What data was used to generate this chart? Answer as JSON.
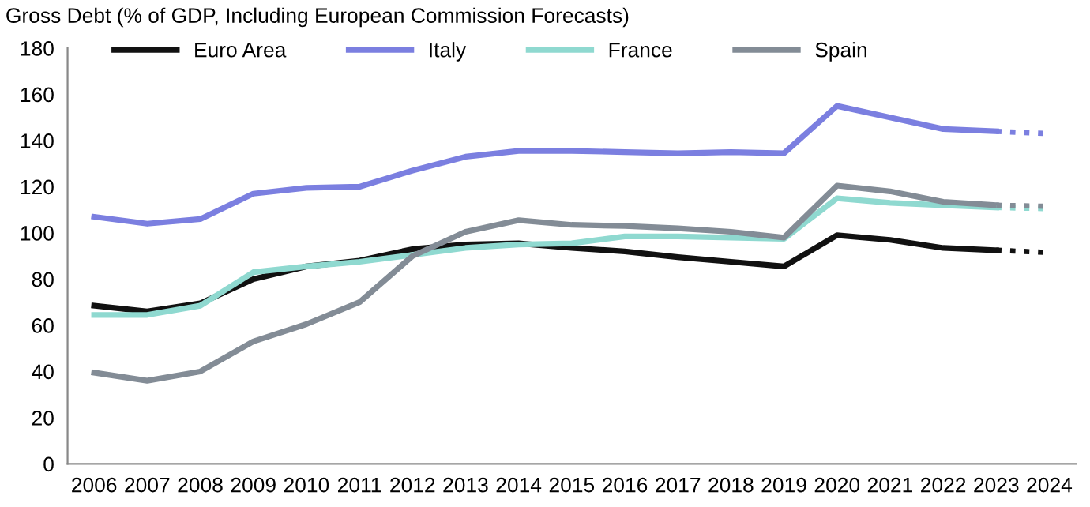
{
  "chart_data": {
    "type": "line",
    "title": "Gross Debt (% of GDP, Including European Commission Forecasts)",
    "categories": [
      "2006",
      "2007",
      "2008",
      "2009",
      "2010",
      "2011",
      "2012",
      "2013",
      "2014",
      "2015",
      "2016",
      "2017",
      "2018",
      "2019",
      "2020",
      "2021",
      "2022",
      "2023",
      "2024"
    ],
    "ylim": [
      0,
      180
    ],
    "yticks": [
      0,
      20,
      40,
      60,
      80,
      100,
      120,
      140,
      160,
      180
    ],
    "grid": false,
    "legend": "top",
    "marker": "none",
    "series": [
      {
        "name": "Euro Area",
        "color": "#111111",
        "line_style": "solid",
        "values": [
          68.5,
          66,
          69.5,
          80,
          85.5,
          88,
          93,
          95,
          95.5,
          93.5,
          92,
          89.5,
          87.5,
          85.5,
          99,
          97,
          93.5,
          92.5,
          null
        ]
      },
      {
        "name": "Italy",
        "color": "#7b7fe0",
        "line_style": "solid",
        "values": [
          107,
          104,
          106,
          117,
          119.5,
          120,
          127,
          133,
          135.5,
          135.5,
          135,
          134.5,
          135,
          134.5,
          155,
          150,
          145,
          144,
          null
        ]
      },
      {
        "name": "France",
        "color": "#8fd9d0",
        "line_style": "solid",
        "values": [
          64.5,
          64.5,
          68.5,
          83,
          85.5,
          87.5,
          90.5,
          93.5,
          95,
          95.5,
          98.5,
          98.5,
          98,
          97.5,
          115,
          113,
          112,
          111,
          null
        ]
      },
      {
        "name": "Spain",
        "color": "#838c96",
        "line_style": "solid",
        "values": [
          39.5,
          36,
          40,
          53,
          60.5,
          70,
          90,
          100.5,
          105.5,
          103.5,
          103,
          102,
          100.5,
          98,
          120.5,
          118,
          113.5,
          112,
          null
        ]
      },
      {
        "color": "#111111",
        "line_style": "dotted",
        "values": [
          null,
          null,
          null,
          null,
          null,
          null,
          null,
          null,
          null,
          null,
          null,
          null,
          null,
          null,
          null,
          null,
          null,
          92.5,
          91.5
        ]
      },
      {
        "color": "#7b7fe0",
        "line_style": "dotted",
        "values": [
          null,
          null,
          null,
          null,
          null,
          null,
          null,
          null,
          null,
          null,
          null,
          null,
          null,
          null,
          null,
          null,
          null,
          144,
          143
        ]
      },
      {
        "color": "#8fd9d0",
        "line_style": "dotted",
        "values": [
          null,
          null,
          null,
          null,
          null,
          null,
          null,
          null,
          null,
          null,
          null,
          null,
          null,
          null,
          null,
          null,
          null,
          111,
          110.5
        ]
      },
      {
        "color": "#838c96",
        "line_style": "dotted",
        "values": [
          null,
          null,
          null,
          null,
          null,
          null,
          null,
          null,
          null,
          null,
          null,
          null,
          null,
          null,
          null,
          null,
          null,
          112,
          111.5
        ]
      }
    ]
  }
}
